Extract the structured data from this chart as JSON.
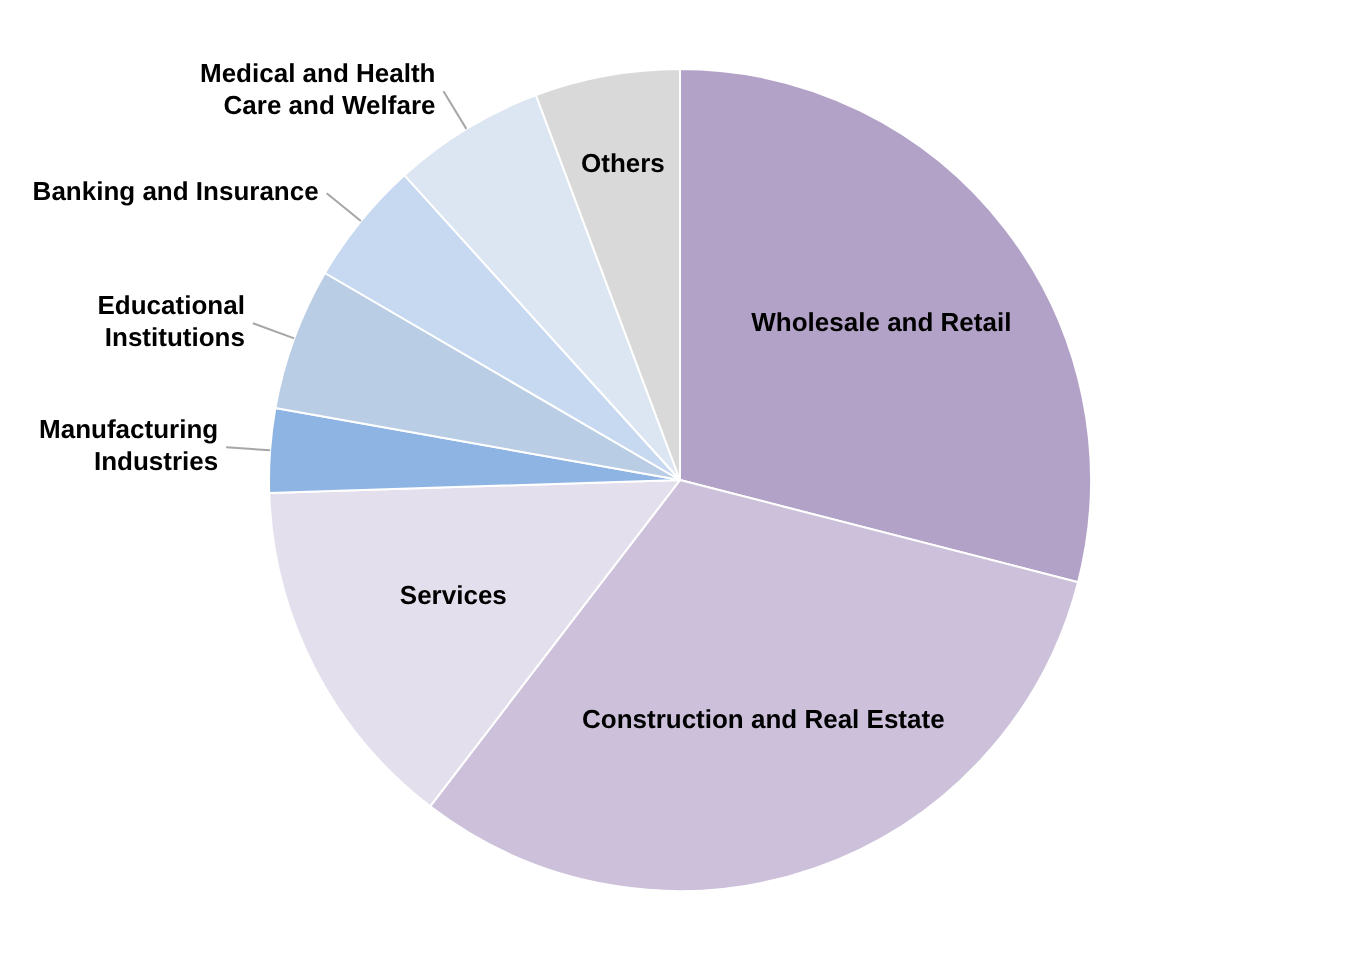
{
  "chart_data": {
    "type": "pie",
    "categories": [
      "Wholesale and Retail",
      "Construction and Real Estate",
      "Services",
      "Manufacturing Industries",
      "Educational Institutions",
      "Banking and Insurance",
      "Medical and Health Care and Welfare",
      "Others"
    ],
    "values": [
      29,
      31.4,
      14.1,
      3.3,
      5.6,
      4.9,
      6,
      5.7
    ],
    "colors": [
      "#b3a2c7",
      "#ccc0da",
      "#e4dfec",
      "#8eb4e3",
      "#b9cde5",
      "#c6d9f1",
      "#dce6f2",
      "#d9d9d9"
    ],
    "legend": false
  }
}
